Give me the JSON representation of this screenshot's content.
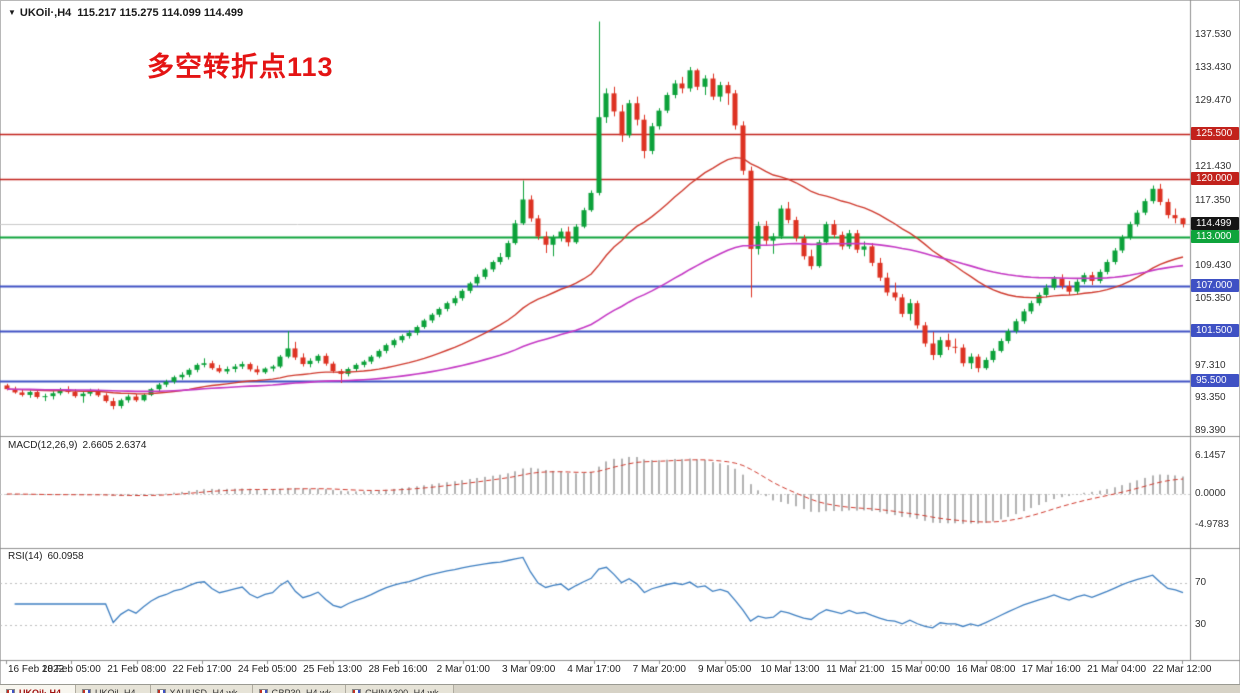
{
  "chart": {
    "header": {
      "triangle": "▼",
      "symbol": "UKOil·,H4",
      "ohlc": "115.217 115.275 114.099 114.499"
    },
    "annotation": "多空转折点113",
    "annotation_color": "#e41414"
  },
  "candle_colors": {
    "up": "#0ca13a",
    "down": "#dd3222"
  },
  "chart_data": {
    "type": "candlestick",
    "symbol": "UKOil",
    "timeframe": "H4",
    "current_bar": {
      "open": 115.217,
      "high": 115.275,
      "low": 114.099,
      "close": 114.499
    },
    "y_range": {
      "min": 89.0,
      "max": 139.8
    },
    "price_axis": [
      {
        "v": 137.53,
        "t": "137.530"
      },
      {
        "v": 133.43,
        "t": "133.430"
      },
      {
        "v": 129.47,
        "t": "129.470"
      },
      {
        "v": 121.43,
        "t": "121.430"
      },
      {
        "v": 117.35,
        "t": "117.350"
      },
      {
        "v": 109.43,
        "t": "109.430"
      },
      {
        "v": 105.35,
        "t": "105.350"
      },
      {
        "v": 97.31,
        "t": "97.310"
      },
      {
        "v": 93.35,
        "t": "93.350"
      },
      {
        "v": 89.39,
        "t": "89.390"
      }
    ],
    "levels": [
      {
        "price": 125.5,
        "label": "125.500",
        "color": "#c2221c",
        "width": 1.5
      },
      {
        "price": 120.0,
        "label": "120.000",
        "color": "#c2221c",
        "width": 1.5
      },
      {
        "price": 113.0,
        "label": "113.000",
        "color": "#0fa43c",
        "width": 2
      },
      {
        "price": 107.0,
        "label": "107.000",
        "color": "#3f51c4",
        "width": 2
      },
      {
        "price": 101.5,
        "label": "101.500",
        "color": "#3f51c4",
        "width": 2
      },
      {
        "price": 95.5,
        "label": "95.500",
        "color": "#3f51c4",
        "width": 2
      }
    ],
    "current_price_tag": {
      "price": 114.499,
      "label": "114.499",
      "color": "#151515"
    },
    "overlays": [
      {
        "name": "ma-fast",
        "type": "ema",
        "period": 34,
        "color": "#cf3a2e"
      },
      {
        "name": "ma-slow",
        "type": "ema",
        "period": 89,
        "color": "#c438c4"
      }
    ],
    "x_axis_labels": [
      "16 Feb 2022",
      "18 Feb 05:00",
      "21 Feb 08:00",
      "22 Feb 17:00",
      "24 Feb 05:00",
      "25 Feb 13:00",
      "28 Feb 16:00",
      "2 Mar 01:00",
      "3 Mar 09:00",
      "4 Mar 17:00",
      "7 Mar 20:00",
      "9 Mar 05:00",
      "10 Mar 13:00",
      "11 Mar 21:00",
      "15 Mar 00:00",
      "16 Mar 08:00",
      "17 Mar 16:00",
      "21 Mar 04:00",
      "22 Mar 12:00"
    ],
    "candles": [
      [
        94.9,
        95.1,
        94.3,
        94.45
      ],
      [
        94.45,
        94.75,
        93.9,
        94.05
      ],
      [
        94.05,
        94.4,
        93.55,
        93.75
      ],
      [
        93.75,
        94.3,
        93.4,
        94.1
      ],
      [
        94.1,
        94.35,
        93.3,
        93.5
      ],
      [
        93.5,
        93.9,
        93.0,
        93.6
      ],
      [
        93.6,
        94.2,
        93.2,
        93.95
      ],
      [
        93.95,
        94.6,
        93.7,
        94.4
      ],
      [
        94.4,
        94.8,
        93.9,
        94.1
      ],
      [
        94.1,
        94.45,
        93.4,
        93.6
      ],
      [
        93.6,
        94.1,
        92.8,
        93.9
      ],
      [
        93.9,
        94.5,
        93.6,
        94.2
      ],
      [
        94.2,
        94.5,
        93.5,
        93.7
      ],
      [
        93.7,
        93.95,
        92.8,
        93.0
      ],
      [
        93.0,
        93.4,
        92.0,
        92.4
      ],
      [
        92.4,
        93.3,
        92.1,
        93.1
      ],
      [
        93.1,
        93.8,
        92.8,
        93.55
      ],
      [
        93.55,
        93.85,
        92.9,
        93.1
      ],
      [
        93.1,
        93.9,
        92.95,
        93.75
      ],
      [
        93.75,
        94.6,
        93.6,
        94.45
      ],
      [
        94.45,
        95.2,
        94.2,
        95.0
      ],
      [
        95.0,
        95.6,
        94.7,
        95.35
      ],
      [
        95.35,
        96.1,
        95.1,
        95.9
      ],
      [
        95.9,
        96.5,
        95.6,
        96.2
      ],
      [
        96.2,
        97.0,
        95.9,
        96.8
      ],
      [
        96.8,
        97.6,
        96.5,
        97.4
      ],
      [
        97.4,
        98.2,
        97.1,
        97.6
      ],
      [
        97.6,
        97.9,
        96.8,
        97.0
      ],
      [
        97.0,
        97.4,
        96.4,
        96.6
      ],
      [
        96.6,
        97.2,
        96.3,
        96.9
      ],
      [
        96.9,
        97.5,
        96.5,
        97.2
      ],
      [
        97.2,
        97.8,
        96.9,
        97.5
      ],
      [
        97.5,
        97.7,
        96.6,
        96.85
      ],
      [
        96.85,
        97.3,
        96.2,
        96.5
      ],
      [
        96.5,
        97.1,
        96.3,
        96.95
      ],
      [
        96.95,
        97.4,
        96.6,
        97.2
      ],
      [
        97.2,
        98.6,
        97.0,
        98.4
      ],
      [
        98.4,
        101.5,
        98.2,
        99.4
      ],
      [
        99.4,
        100.2,
        98.0,
        98.3
      ],
      [
        98.3,
        98.8,
        97.2,
        97.5
      ],
      [
        97.5,
        98.2,
        97.1,
        97.9
      ],
      [
        97.9,
        98.7,
        97.6,
        98.5
      ],
      [
        98.5,
        98.8,
        97.3,
        97.55
      ],
      [
        97.55,
        97.8,
        96.4,
        96.65
      ],
      [
        96.65,
        96.9,
        95.2,
        96.3
      ],
      [
        96.3,
        97.1,
        96.0,
        96.9
      ],
      [
        96.9,
        97.6,
        96.6,
        97.4
      ],
      [
        97.4,
        98.0,
        97.1,
        97.8
      ],
      [
        97.8,
        98.6,
        97.5,
        98.4
      ],
      [
        98.4,
        99.3,
        98.2,
        99.1
      ],
      [
        99.1,
        100.0,
        98.8,
        99.8
      ],
      [
        99.8,
        100.6,
        99.5,
        100.4
      ],
      [
        100.4,
        101.1,
        100.1,
        100.9
      ],
      [
        100.9,
        101.6,
        100.6,
        101.3
      ],
      [
        101.3,
        102.2,
        101.0,
        102.0
      ],
      [
        102.0,
        103.0,
        101.8,
        102.8
      ],
      [
        102.8,
        103.7,
        102.5,
        103.5
      ],
      [
        103.5,
        104.4,
        103.2,
        104.2
      ],
      [
        104.2,
        105.1,
        103.9,
        104.9
      ],
      [
        104.9,
        105.8,
        104.6,
        105.5
      ],
      [
        105.5,
        106.6,
        105.2,
        106.4
      ],
      [
        106.4,
        107.5,
        106.1,
        107.3
      ],
      [
        107.3,
        108.4,
        107.0,
        108.1
      ],
      [
        108.1,
        109.2,
        107.8,
        109.0
      ],
      [
        109.0,
        110.1,
        108.7,
        109.9
      ],
      [
        109.9,
        111.0,
        109.6,
        110.5
      ],
      [
        110.5,
        112.5,
        110.2,
        112.2
      ],
      [
        112.2,
        115.0,
        112.0,
        114.6
      ],
      [
        114.6,
        119.8,
        114.4,
        117.5
      ],
      [
        117.5,
        118.0,
        114.8,
        115.2
      ],
      [
        115.2,
        115.6,
        112.6,
        113.0
      ],
      [
        113.0,
        113.6,
        111.0,
        112.0
      ],
      [
        112.0,
        113.2,
        110.6,
        112.9
      ],
      [
        112.9,
        114.0,
        112.4,
        113.6
      ],
      [
        113.6,
        114.2,
        111.8,
        112.3
      ],
      [
        112.3,
        114.5,
        112.1,
        114.2
      ],
      [
        114.2,
        116.5,
        114.0,
        116.2
      ],
      [
        116.2,
        118.6,
        116.0,
        118.3
      ],
      [
        118.3,
        139.13,
        118.0,
        127.5
      ],
      [
        127.5,
        131.0,
        126.8,
        130.4
      ],
      [
        130.4,
        131.2,
        127.6,
        128.2
      ],
      [
        128.2,
        129.0,
        124.5,
        125.3
      ],
      [
        125.3,
        129.6,
        125.0,
        129.2
      ],
      [
        129.2,
        130.0,
        126.5,
        127.2
      ],
      [
        127.2,
        127.8,
        122.5,
        123.4
      ],
      [
        123.4,
        126.8,
        123.0,
        126.4
      ],
      [
        126.4,
        128.6,
        126.0,
        128.3
      ],
      [
        128.3,
        130.5,
        128.0,
        130.2
      ],
      [
        130.2,
        132.0,
        129.8,
        131.6
      ],
      [
        131.6,
        132.4,
        130.4,
        131.0
      ],
      [
        131.0,
        133.6,
        130.6,
        133.2
      ],
      [
        133.2,
        133.4,
        130.8,
        131.2
      ],
      [
        131.2,
        132.6,
        130.2,
        132.2
      ],
      [
        132.2,
        132.8,
        129.6,
        130.0
      ],
      [
        130.0,
        131.8,
        129.4,
        131.4
      ],
      [
        131.4,
        131.8,
        129.0,
        130.4
      ],
      [
        130.4,
        130.8,
        126.0,
        126.5
      ],
      [
        126.5,
        127.0,
        120.5,
        121.0
      ],
      [
        121.0,
        121.5,
        105.6,
        111.5
      ],
      [
        111.5,
        114.8,
        110.8,
        114.3
      ],
      [
        114.3,
        114.9,
        112.0,
        112.5
      ],
      [
        112.5,
        113.4,
        110.9,
        113.0
      ],
      [
        113.0,
        116.8,
        112.7,
        116.4
      ],
      [
        116.4,
        117.2,
        114.6,
        115.0
      ],
      [
        115.0,
        115.4,
        112.4,
        112.8
      ],
      [
        112.8,
        113.2,
        110.2,
        110.6
      ],
      [
        110.6,
        111.4,
        109.0,
        109.4
      ],
      [
        109.4,
        112.6,
        109.2,
        112.3
      ],
      [
        112.3,
        114.8,
        112.0,
        114.5
      ],
      [
        114.5,
        115.0,
        112.8,
        113.2
      ],
      [
        113.2,
        113.6,
        111.4,
        111.8
      ],
      [
        111.8,
        113.8,
        111.5,
        113.4
      ],
      [
        113.4,
        113.8,
        111.0,
        111.4
      ],
      [
        111.4,
        112.4,
        110.6,
        111.8
      ],
      [
        111.8,
        112.2,
        109.4,
        109.8
      ],
      [
        109.8,
        110.4,
        107.6,
        108.0
      ],
      [
        108.0,
        108.6,
        105.8,
        106.2
      ],
      [
        106.2,
        107.4,
        105.2,
        105.6
      ],
      [
        105.6,
        106.0,
        103.2,
        103.6
      ],
      [
        103.6,
        105.4,
        102.8,
        104.9
      ],
      [
        104.9,
        105.2,
        101.8,
        102.2
      ],
      [
        102.2,
        102.6,
        99.6,
        100.0
      ],
      [
        100.0,
        101.4,
        98.0,
        98.6
      ],
      [
        98.6,
        100.8,
        98.3,
        100.4
      ],
      [
        100.4,
        101.2,
        99.2,
        99.6
      ],
      [
        99.6,
        100.6,
        98.8,
        99.5
      ],
      [
        99.5,
        99.9,
        97.2,
        97.6
      ],
      [
        97.6,
        98.8,
        96.9,
        98.4
      ],
      [
        98.4,
        98.7,
        96.5,
        97.0
      ],
      [
        97.0,
        98.3,
        96.8,
        98.0
      ],
      [
        98.0,
        99.4,
        97.7,
        99.1
      ],
      [
        99.1,
        100.6,
        98.9,
        100.3
      ],
      [
        100.3,
        101.8,
        100.0,
        101.5
      ],
      [
        101.5,
        103.0,
        101.2,
        102.7
      ],
      [
        102.7,
        104.2,
        102.4,
        103.9
      ],
      [
        103.9,
        105.2,
        103.6,
        104.9
      ],
      [
        104.9,
        106.2,
        104.6,
        105.9
      ],
      [
        105.9,
        107.2,
        105.6,
        106.8
      ],
      [
        106.8,
        108.2,
        106.5,
        107.9
      ],
      [
        107.9,
        108.4,
        106.6,
        107.0
      ],
      [
        107.0,
        107.6,
        105.9,
        106.3
      ],
      [
        106.3,
        107.8,
        106.0,
        107.5
      ],
      [
        107.5,
        108.6,
        107.2,
        108.3
      ],
      [
        108.3,
        108.7,
        107.1,
        107.6
      ],
      [
        107.6,
        109.0,
        107.3,
        108.7
      ],
      [
        108.7,
        110.2,
        108.4,
        109.9
      ],
      [
        109.9,
        111.6,
        109.6,
        111.3
      ],
      [
        111.3,
        113.2,
        111.0,
        112.9
      ],
      [
        112.9,
        114.8,
        112.6,
        114.5
      ],
      [
        114.5,
        116.2,
        114.2,
        115.9
      ],
      [
        115.9,
        117.6,
        115.6,
        117.3
      ],
      [
        117.3,
        119.2,
        117.0,
        118.8
      ],
      [
        118.8,
        119.4,
        116.8,
        117.2
      ],
      [
        117.2,
        117.6,
        115.2,
        115.6
      ],
      [
        115.6,
        116.4,
        114.6,
        115.22
      ],
      [
        115.22,
        115.28,
        114.1,
        114.5
      ]
    ]
  },
  "macd": {
    "label": "MACD(12,26,9)",
    "values": "2.6605 2.6374",
    "fast": 12,
    "slow": 26,
    "signal": 9,
    "histogram_color": "#b3b3b3",
    "signal_color": "#cf3a2e",
    "axis": [
      {
        "v": 6.1457,
        "t": "6.1457"
      },
      {
        "v": 0,
        "t": "0.0000"
      },
      {
        "v": -4.9783,
        "t": "-4.9783"
      }
    ]
  },
  "rsi": {
    "label": "RSI(14)",
    "value": "60.0958",
    "period": 14,
    "line_color": "#3e7fc1",
    "levels": [
      70,
      30
    ],
    "axis": [
      {
        "v": 70,
        "t": "70"
      },
      {
        "v": 30,
        "t": "30"
      }
    ]
  },
  "taskbar": {
    "tabs": [
      {
        "label": "UKOil·,H4",
        "active": true
      },
      {
        "label": "UKOil·,H4",
        "active": false
      },
      {
        "label": "XAUUSD·,H4 wk",
        "active": false
      },
      {
        "label": "GBP30·,H4 wk",
        "active": false
      },
      {
        "label": "CHINA300·,H4 wk",
        "active": false
      }
    ]
  }
}
